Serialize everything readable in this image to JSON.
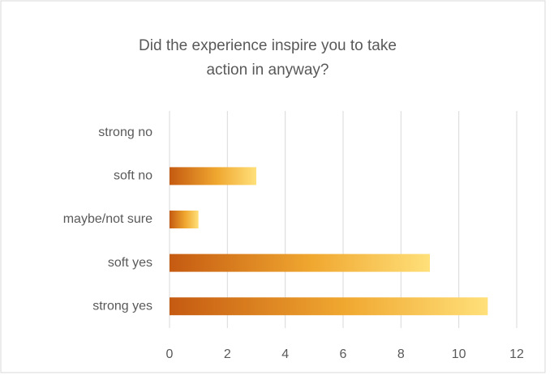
{
  "chart_data": {
    "type": "hbar",
    "title": "Did the experience inspire you to take action in anyway?",
    "categories": [
      "strong no",
      "soft no",
      "maybe/not sure",
      "soft yes",
      "strong yes"
    ],
    "values": [
      0,
      3,
      1,
      9,
      11
    ],
    "gradient": [
      "#c55a11",
      "#f0a830",
      "#ffe07a"
    ],
    "xlim": [
      0,
      12
    ],
    "xticks": [
      0,
      2,
      4,
      6,
      8,
      10,
      12
    ],
    "grid": true
  }
}
